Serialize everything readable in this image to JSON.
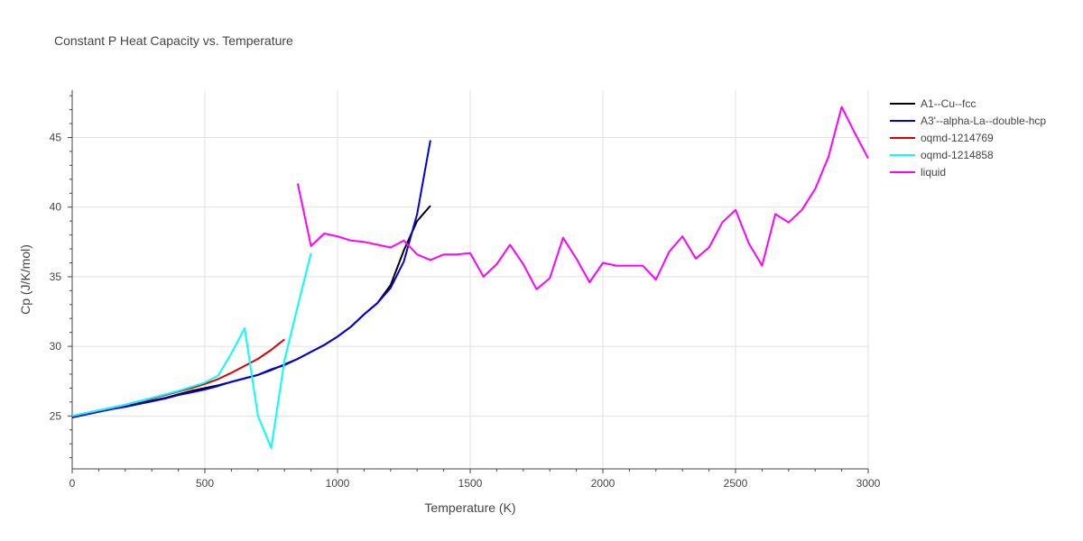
{
  "chart_data": {
    "type": "line",
    "title": "Constant P Heat Capacity vs. Temperature",
    "xlabel": "Temperature (K)",
    "ylabel": "Cp (J/K/mol)",
    "xlim": [
      0,
      3000
    ],
    "ylim": [
      21.2,
      48.4
    ],
    "xticks": [
      0,
      500,
      1000,
      1500,
      2000,
      2500,
      3000
    ],
    "xtick_labels": [
      "0",
      "500",
      "1000",
      "1500",
      "2000",
      "2500",
      "3000"
    ],
    "yticks": [
      25,
      30,
      35,
      40,
      45
    ],
    "ytick_labels": [
      "25",
      "30",
      "35",
      "40",
      "45"
    ],
    "grid": true,
    "legend_position": "top-right",
    "series": [
      {
        "name": "A1--Cu--fcc",
        "color": "#000000",
        "x": [
          0,
          50,
          100,
          150,
          200,
          250,
          300,
          350,
          400,
          450,
          500,
          550,
          600,
          650,
          700,
          750,
          800,
          850,
          900,
          950,
          1000,
          1050,
          1100,
          1150,
          1200,
          1250,
          1300,
          1350
        ],
        "y": [
          24.9,
          25.1,
          25.3,
          25.5,
          25.7,
          25.9,
          26.1,
          26.3,
          26.55,
          26.8,
          27.0,
          27.2,
          27.45,
          27.7,
          27.95,
          28.3,
          28.7,
          29.1,
          29.6,
          30.1,
          30.7,
          31.4,
          32.3,
          33.1,
          34.4,
          36.9,
          39.0,
          40.1
        ]
      },
      {
        "name": "A3'--alpha-La--double-hcp",
        "color": "#0000dd",
        "x": [
          0,
          50,
          100,
          150,
          200,
          250,
          300,
          350,
          400,
          450,
          500,
          550,
          600,
          650,
          700,
          750,
          800,
          850,
          900,
          950,
          1000,
          1050,
          1100,
          1150,
          1200,
          1250,
          1300,
          1350
        ],
        "y": [
          24.9,
          25.1,
          25.3,
          25.5,
          25.65,
          25.85,
          26.05,
          26.25,
          26.5,
          26.7,
          26.9,
          27.15,
          27.45,
          27.7,
          27.95,
          28.35,
          28.65,
          29.1,
          29.6,
          30.1,
          30.7,
          31.4,
          32.3,
          33.1,
          34.2,
          36.1,
          39.5,
          44.8
        ]
      },
      {
        "name": "oqmd-1214769",
        "color": "#dd0000",
        "x": [
          0,
          50,
          100,
          150,
          200,
          250,
          300,
          350,
          400,
          450,
          500,
          550,
          600,
          650,
          700,
          750,
          800
        ],
        "y": [
          25.0,
          25.2,
          25.4,
          25.6,
          25.8,
          26.05,
          26.25,
          26.5,
          26.75,
          27.0,
          27.3,
          27.65,
          28.1,
          28.6,
          29.1,
          29.75,
          30.5
        ]
      },
      {
        "name": "oqmd-1214858",
        "color": "#00ffff",
        "x": [
          0,
          50,
          100,
          150,
          200,
          250,
          300,
          350,
          400,
          450,
          500,
          550,
          600,
          650,
          700,
          750,
          800,
          850,
          900
        ],
        "y": [
          25.0,
          25.2,
          25.4,
          25.6,
          25.8,
          26.05,
          26.3,
          26.55,
          26.8,
          27.1,
          27.4,
          27.9,
          29.5,
          31.3,
          25.0,
          22.7,
          29.0,
          32.9,
          36.7
        ]
      },
      {
        "name": "liquid",
        "color": "#ff00ff",
        "x": [
          850,
          900,
          950,
          1000,
          1050,
          1100,
          1150,
          1200,
          1250,
          1300,
          1350,
          1400,
          1450,
          1500,
          1550,
          1600,
          1650,
          1700,
          1750,
          1800,
          1850,
          1900,
          1950,
          2000,
          2050,
          2100,
          2150,
          2200,
          2250,
          2300,
          2350,
          2400,
          2450,
          2500,
          2550,
          2600,
          2650,
          2700,
          2750,
          2800,
          2850,
          2900,
          2950,
          3000
        ],
        "y": [
          41.7,
          37.2,
          38.1,
          37.9,
          37.6,
          37.5,
          37.3,
          37.1,
          37.6,
          36.6,
          36.2,
          36.6,
          36.6,
          36.7,
          35.0,
          35.9,
          37.3,
          35.9,
          34.1,
          34.9,
          37.8,
          36.3,
          34.6,
          36.0,
          35.8,
          35.8,
          35.8,
          34.8,
          36.8,
          37.9,
          36.3,
          37.1,
          38.9,
          39.8,
          37.4,
          35.8,
          39.5,
          38.9,
          39.8,
          41.3,
          43.6,
          47.2,
          45.3,
          43.5
        ]
      }
    ]
  }
}
